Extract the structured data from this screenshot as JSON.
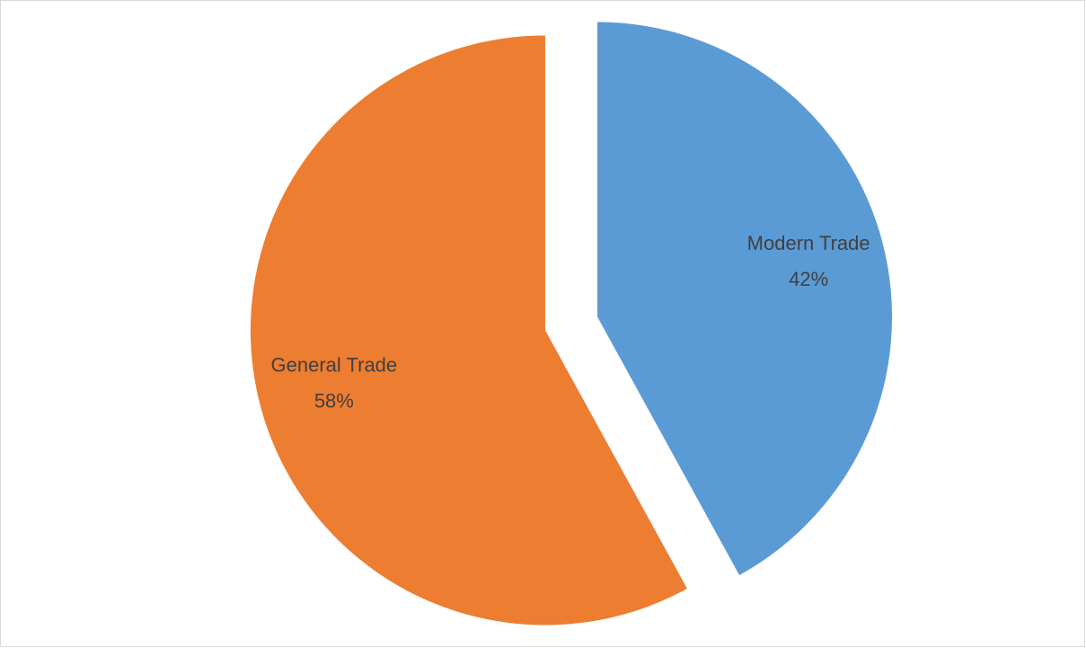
{
  "chart_data": {
    "type": "pie",
    "categories": [
      "Modern Trade",
      "General Trade"
    ],
    "values": [
      42,
      58
    ],
    "value_labels": [
      "42%",
      "58%"
    ],
    "colors": [
      "#5b9bd5",
      "#ed7d31"
    ],
    "exploded": true
  }
}
